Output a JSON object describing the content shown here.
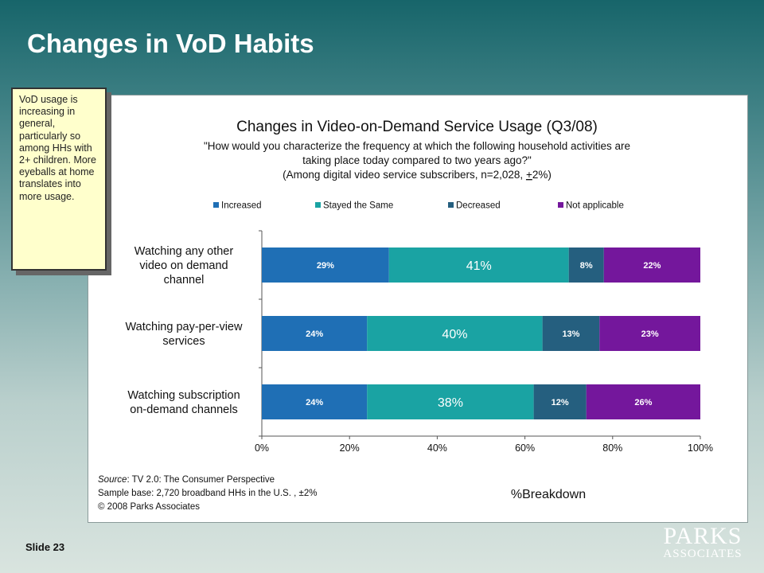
{
  "slide": {
    "title": "Changes in VoD Habits",
    "number_label": "Slide 23",
    "callout": "VoD usage is increasing in general, particularly so among HHs with 2+ children.  More eyeballs at home translates into more usage.",
    "logo_top": "PARKS",
    "logo_bottom": "ASSOCIATES"
  },
  "chart_data": {
    "type": "bar",
    "orientation": "horizontal",
    "stacked": true,
    "title": "Changes in Video-on-Demand Service Usage (Q3/08)",
    "subtitle_lines": [
      "\"How would you characterize the frequency at which the following household activities are",
      "taking place today compared to two years ago?\""
    ],
    "subtitle_note_prefix": "(Among digital video service subscribers, n=2,028, ",
    "subtitle_note_pm": "+",
    "subtitle_note_suffix": "2%)",
    "categories": [
      "Watching any other video on demand channel",
      "Watching pay-per-view services",
      "Watching subscription on-demand channels"
    ],
    "category_lines": [
      [
        "Watching any other",
        "video on demand",
        "channel"
      ],
      [
        "Watching pay-per-view",
        "services"
      ],
      [
        "Watching subscription",
        "on-demand channels"
      ]
    ],
    "series": [
      {
        "name": "Increased",
        "color": "#1f6fb5",
        "values": [
          29,
          24,
          24
        ],
        "labels": [
          "29%",
          "24%",
          "24%"
        ]
      },
      {
        "name": "Stayed the Same",
        "color": "#1aa3a3",
        "values": [
          41,
          40,
          38
        ],
        "labels": [
          "41%",
          "40%",
          "38%"
        ]
      },
      {
        "name": "Decreased",
        "color": "#255f7f",
        "values": [
          8,
          13,
          12
        ],
        "labels": [
          "8%",
          "13%",
          "12%"
        ]
      },
      {
        "name": "Not applicable",
        "color": "#74179c",
        "values": [
          22,
          23,
          26
        ],
        "labels": [
          "22%",
          "23%",
          "26%"
        ]
      }
    ],
    "xaxis": {
      "label": "%Breakdown",
      "range": [
        0,
        100
      ],
      "ticks": [
        0,
        20,
        40,
        60,
        80,
        100
      ],
      "tick_labels": [
        "0%",
        "20%",
        "40%",
        "60%",
        "80%",
        "100%"
      ]
    },
    "legend_position": "top",
    "grid": false,
    "source": {
      "label": "Source",
      "text": ":  TV 2.0: The Consumer Perspective",
      "sample": "Sample base: 2,720 broadband HHs in the U.S. , ±2%",
      "copyright": "© 2008 Parks Associates"
    }
  }
}
